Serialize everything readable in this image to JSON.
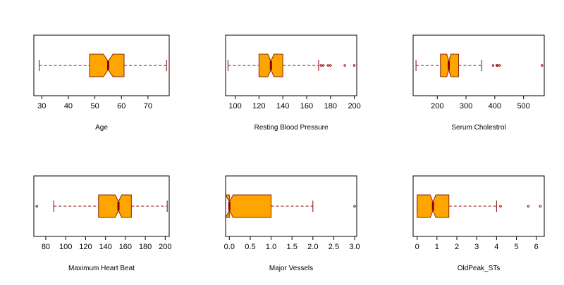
{
  "chart_data": [
    {
      "type": "boxplot",
      "notched": true,
      "orientation": "horizontal",
      "xlabel": "Age",
      "ticks": [
        30,
        40,
        50,
        60,
        70
      ],
      "xlim": [
        27,
        78
      ],
      "box": {
        "whisker_low": 29,
        "q1": 48,
        "median": 55,
        "q3": 61,
        "whisker_high": 77,
        "notch_low": 53.2,
        "notch_high": 56.8
      },
      "outliers": []
    },
    {
      "type": "boxplot",
      "notched": true,
      "orientation": "horizontal",
      "xlabel": "Resting Blood Pressure",
      "ticks": [
        100,
        120,
        140,
        160,
        180,
        200
      ],
      "xlim": [
        92,
        202
      ],
      "box": {
        "whisker_low": 94,
        "q1": 120,
        "median": 130,
        "q3": 140,
        "whisker_high": 170,
        "notch_low": 127.4,
        "notch_high": 132.6
      },
      "outliers": [
        172,
        174,
        178,
        180,
        192,
        200
      ]
    },
    {
      "type": "boxplot",
      "notched": true,
      "orientation": "horizontal",
      "xlabel": "Serum Cholestrol",
      "ticks": [
        200,
        300,
        400,
        500
      ],
      "xlim": [
        116,
        572
      ],
      "box": {
        "whisker_low": 126,
        "q1": 211,
        "median": 240,
        "q3": 274,
        "whisker_high": 354,
        "notch_low": 233,
        "notch_high": 247
      },
      "outliers": [
        394,
        407,
        409,
        417,
        564
      ]
    },
    {
      "type": "boxplot",
      "notched": true,
      "orientation": "horizontal",
      "xlabel": "Maximum Heart Beat",
      "ticks": [
        80,
        100,
        120,
        140,
        160,
        180,
        200
      ],
      "xlim": [
        68,
        204
      ],
      "box": {
        "whisker_low": 88,
        "q1": 133,
        "median": 153,
        "q3": 166,
        "whisker_high": 202,
        "notch_low": 149.8,
        "notch_high": 156.2
      },
      "outliers": [
        71
      ]
    },
    {
      "type": "boxplot",
      "notched": true,
      "orientation": "horizontal",
      "xlabel": "Major Vessels",
      "ticks": [
        "0.0",
        "0.5",
        "1.0",
        "1.5",
        "2.0",
        "2.5",
        "3.0"
      ],
      "xlim": [
        -0.09,
        3.05
      ],
      "box": {
        "whisker_low": 0,
        "q1": 0,
        "median": 0,
        "q3": 1,
        "whisker_high": 2,
        "notch_low": -0.09,
        "notch_high": 0.09
      },
      "outliers": [
        3
      ]
    },
    {
      "type": "boxplot",
      "notched": true,
      "orientation": "horizontal",
      "xlabel": "OldPeak_STs",
      "ticks": [
        0,
        1,
        2,
        3,
        4,
        5,
        6
      ],
      "xlim": [
        -0.2,
        6.4
      ],
      "box": {
        "whisker_low": 0,
        "q1": 0,
        "median": 0.8,
        "q3": 1.6,
        "whisker_high": 4.0,
        "notch_low": 0.66,
        "notch_high": 0.94
      },
      "outliers": [
        4.2,
        5.6,
        6.2
      ]
    }
  ],
  "colors": {
    "box_fill": "#FFA500",
    "box_border": "#8B2500",
    "median": "#8B0000",
    "whisker": "#8B0000",
    "outlier": "#8B0000",
    "frame": "#000000"
  }
}
